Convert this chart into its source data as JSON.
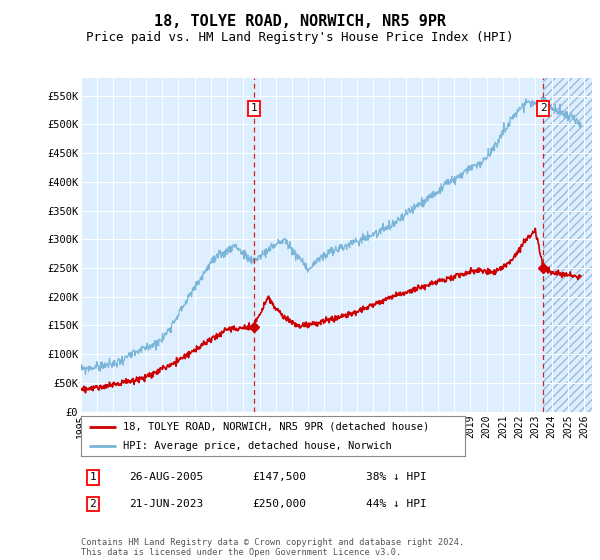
{
  "title": "18, TOLYE ROAD, NORWICH, NR5 9PR",
  "subtitle": "Price paid vs. HM Land Registry's House Price Index (HPI)",
  "title_fontsize": 11,
  "subtitle_fontsize": 9,
  "ylabel_ticks": [
    "£0",
    "£50K",
    "£100K",
    "£150K",
    "£200K",
    "£250K",
    "£300K",
    "£350K",
    "£400K",
    "£450K",
    "£500K",
    "£550K"
  ],
  "ytick_values": [
    0,
    50000,
    100000,
    150000,
    200000,
    250000,
    300000,
    350000,
    400000,
    450000,
    500000,
    550000
  ],
  "ylim": [
    0,
    580000
  ],
  "xlim_start": 1995.0,
  "xlim_end": 2026.5,
  "xtick_years": [
    1995,
    1996,
    1997,
    1998,
    1999,
    2000,
    2001,
    2002,
    2003,
    2004,
    2005,
    2006,
    2007,
    2008,
    2009,
    2010,
    2011,
    2012,
    2013,
    2014,
    2015,
    2016,
    2017,
    2018,
    2019,
    2020,
    2021,
    2022,
    2023,
    2024,
    2025,
    2026
  ],
  "hpi_color": "#7ab5d8",
  "price_color": "#cc0000",
  "marker1_x": 2005.65,
  "marker1_y": 147500,
  "marker2_x": 2023.47,
  "marker2_y": 250000,
  "sale1_date": "26-AUG-2005",
  "sale1_price": "£147,500",
  "sale1_note": "38% ↓ HPI",
  "sale2_date": "21-JUN-2023",
  "sale2_price": "£250,000",
  "sale2_note": "44% ↓ HPI",
  "legend_line1": "18, TOLYE ROAD, NORWICH, NR5 9PR (detached house)",
  "legend_line2": "HPI: Average price, detached house, Norwich",
  "footnote": "Contains HM Land Registry data © Crown copyright and database right 2024.\nThis data is licensed under the Open Government Licence v3.0.",
  "bg_color": "#ddeeff",
  "future_shade_start": 2023.47
}
